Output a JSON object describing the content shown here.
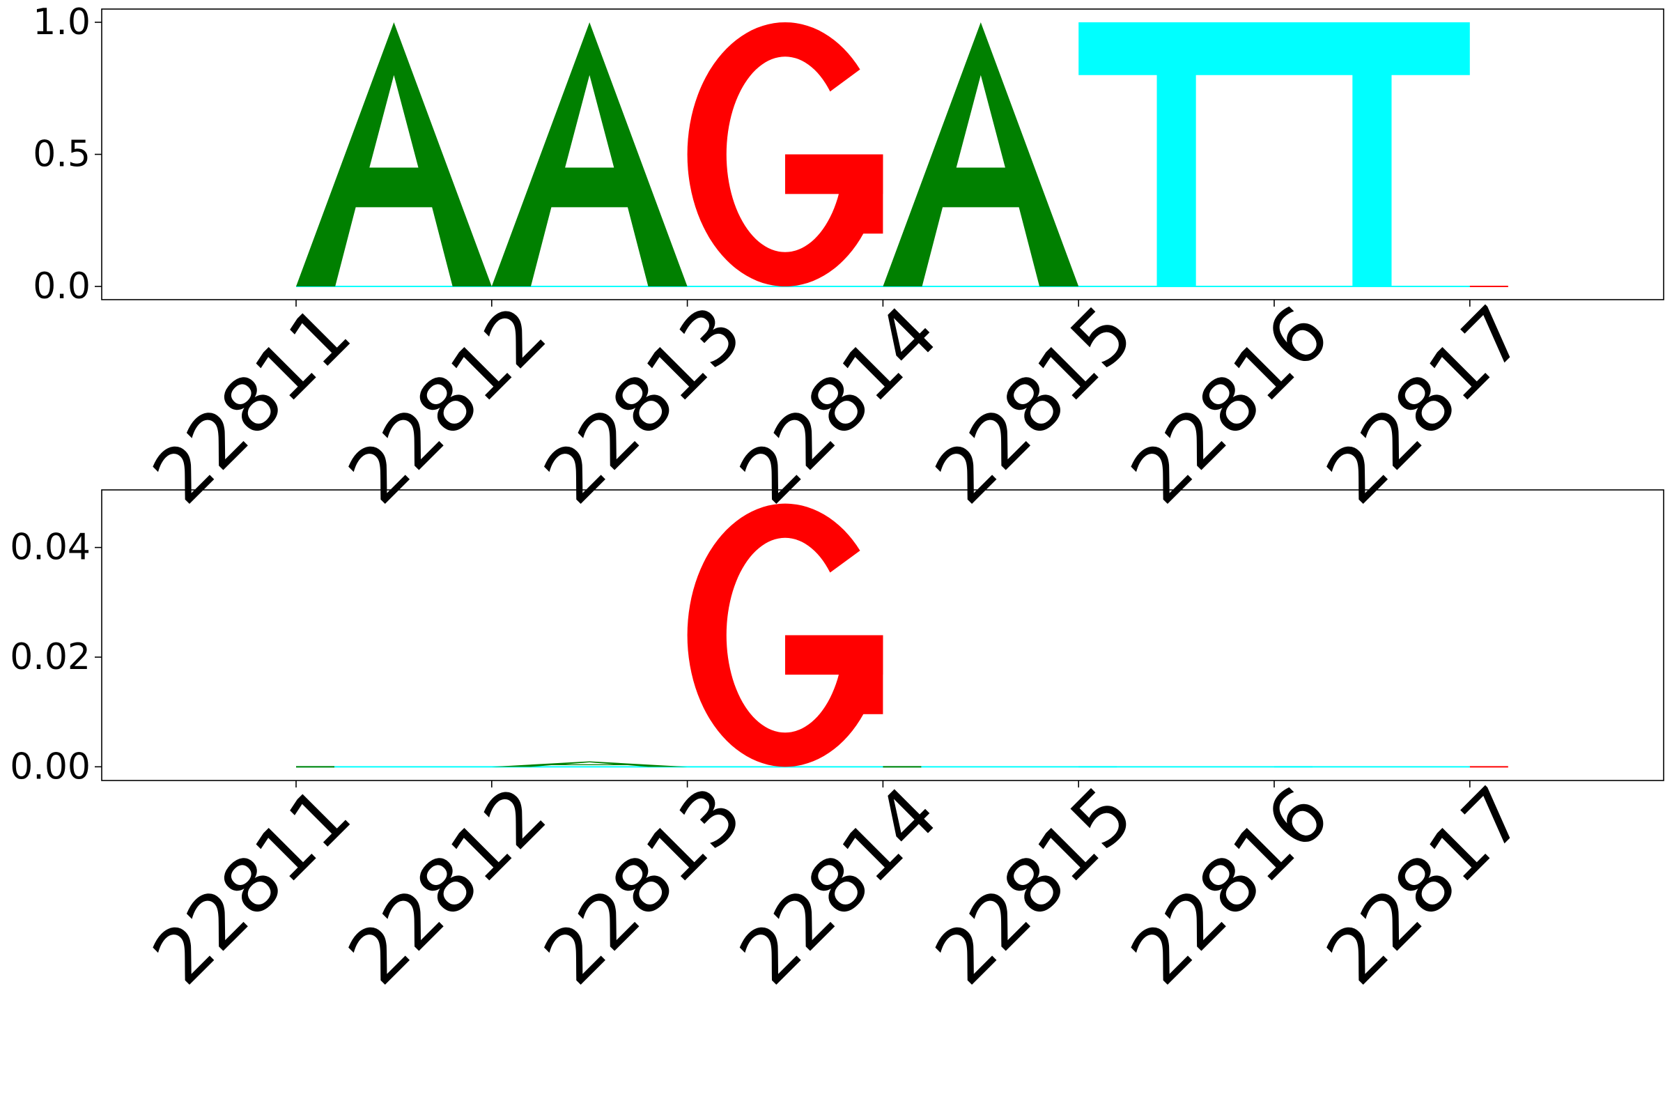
{
  "chart_data": [
    {
      "type": "sequence-logo",
      "title": "",
      "xlabel": "",
      "ylabel": "",
      "ylim": [
        -0.05,
        1.05
      ],
      "yticks": [
        "0.0",
        "0.5",
        "1.0"
      ],
      "positions": [
        "22811",
        "22812",
        "22813",
        "22814",
        "22815",
        "22816",
        "22817"
      ],
      "letters": [
        {
          "position": "22811",
          "base": "A",
          "height": 1.0,
          "color": "#008000"
        },
        {
          "position": "22812",
          "base": "A",
          "height": 1.0,
          "color": "#008000"
        },
        {
          "position": "22813",
          "base": "G",
          "height": 1.0,
          "color": "#ff0000"
        },
        {
          "position": "22814",
          "base": "A",
          "height": 1.0,
          "color": "#008000"
        },
        {
          "position": "22815",
          "base": "T",
          "height": 1.0,
          "color": "#00ffff"
        },
        {
          "position": "22816",
          "base": "T",
          "height": 1.0,
          "color": "#00ffff"
        },
        {
          "position": "22817",
          "base": "",
          "height": 0.0,
          "color": "#ff0000"
        }
      ]
    },
    {
      "type": "sequence-logo",
      "title": "",
      "xlabel": "",
      "ylabel": "",
      "ylim": [
        -0.0025,
        0.0505
      ],
      "yticks": [
        "0.00",
        "0.02",
        "0.04"
      ],
      "positions": [
        "22811",
        "22812",
        "22813",
        "22814",
        "22815",
        "22816",
        "22817"
      ],
      "letters": [
        {
          "position": "22811",
          "base": "",
          "height": 0.0,
          "color": "#008000"
        },
        {
          "position": "22812",
          "base": "A",
          "height": 0.001,
          "color": "#008000"
        },
        {
          "position": "22813",
          "base": "G",
          "height": 0.048,
          "color": "#ff0000"
        },
        {
          "position": "22814",
          "base": "",
          "height": 0.0,
          "color": "#008000"
        },
        {
          "position": "22815",
          "base": "",
          "height": 0.0,
          "color": "#00ffff"
        },
        {
          "position": "22816",
          "base": "",
          "height": 0.0,
          "color": "#00ffff"
        },
        {
          "position": "22817",
          "base": "",
          "height": 0.0,
          "color": "#ff0000"
        }
      ]
    }
  ]
}
